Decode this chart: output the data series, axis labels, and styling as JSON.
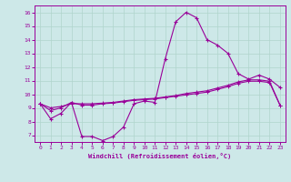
{
  "xlabel": "Windchill (Refroidissement éolien,°C)",
  "background_color": "#cde8e8",
  "line_color": "#990099",
  "grid_color": "#b0d4cc",
  "xlim": [
    -0.5,
    23.5
  ],
  "ylim": [
    6.5,
    16.5
  ],
  "xticks": [
    0,
    1,
    2,
    3,
    4,
    5,
    6,
    7,
    8,
    9,
    10,
    11,
    12,
    13,
    14,
    15,
    16,
    17,
    18,
    19,
    20,
    21,
    22,
    23
  ],
  "yticks": [
    7,
    8,
    9,
    10,
    11,
    12,
    13,
    14,
    15,
    16
  ],
  "series1_x": [
    0,
    1,
    2,
    3,
    4,
    5,
    6,
    7,
    8,
    9,
    10,
    11,
    12,
    13,
    14,
    15,
    16,
    17,
    18,
    19,
    20,
    21,
    22,
    23
  ],
  "series1_y": [
    9.3,
    8.2,
    8.6,
    9.4,
    6.9,
    6.9,
    6.6,
    6.9,
    7.6,
    9.3,
    9.5,
    9.4,
    12.6,
    15.3,
    16.0,
    15.6,
    14.0,
    13.6,
    13.0,
    11.5,
    11.1,
    11.4,
    11.1,
    10.5
  ],
  "series2_x": [
    0,
    1,
    2,
    3,
    4,
    5,
    6,
    7,
    8,
    9,
    10,
    11,
    12,
    13,
    14,
    15,
    16,
    17,
    18,
    19,
    20,
    21,
    22,
    23
  ],
  "series2_y": [
    9.3,
    9.0,
    9.1,
    9.3,
    9.3,
    9.3,
    9.35,
    9.4,
    9.5,
    9.6,
    9.65,
    9.7,
    9.8,
    9.9,
    10.05,
    10.15,
    10.25,
    10.45,
    10.65,
    10.9,
    11.05,
    11.05,
    10.95,
    9.2
  ],
  "series3_x": [
    0,
    1,
    2,
    3,
    4,
    5,
    6,
    7,
    8,
    9,
    10,
    11,
    12,
    13,
    14,
    15,
    16,
    17,
    18,
    19,
    20,
    21,
    22,
    23
  ],
  "series3_y": [
    9.3,
    8.8,
    9.0,
    9.4,
    9.2,
    9.2,
    9.3,
    9.35,
    9.45,
    9.55,
    9.6,
    9.65,
    9.75,
    9.85,
    9.95,
    10.05,
    10.15,
    10.35,
    10.55,
    10.8,
    10.95,
    10.95,
    10.85,
    9.2
  ]
}
